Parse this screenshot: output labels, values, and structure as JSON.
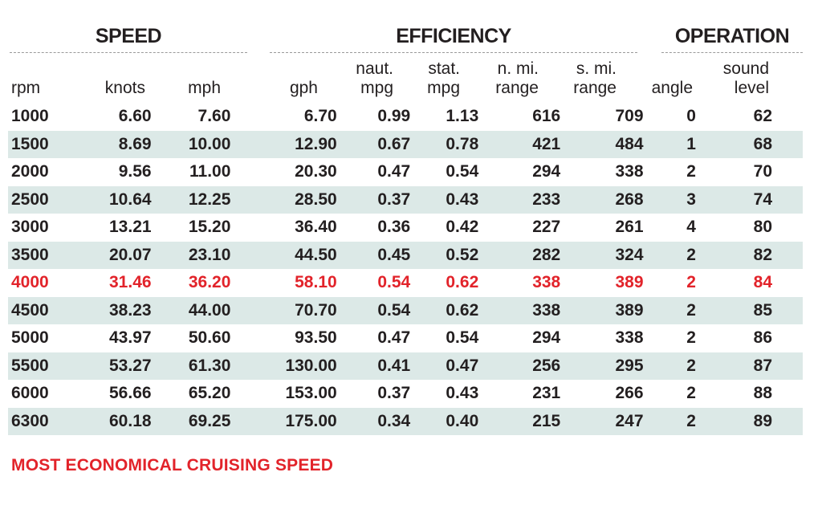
{
  "groups": {
    "speed": "SPEED",
    "efficiency": "EFFICIENCY",
    "operation": "OPERATION"
  },
  "columns": [
    {
      "key": "rpm",
      "lines": [
        "rpm"
      ]
    },
    {
      "key": "knots",
      "lines": [
        "knots"
      ]
    },
    {
      "key": "mph",
      "lines": [
        "mph"
      ]
    },
    {
      "key": "gph",
      "lines": [
        "gph"
      ]
    },
    {
      "key": "naut_mpg",
      "lines": [
        "naut.",
        "mpg"
      ]
    },
    {
      "key": "stat_mpg",
      "lines": [
        "stat.",
        "mpg"
      ]
    },
    {
      "key": "n_mi_range",
      "lines": [
        "n. mi.",
        "range"
      ]
    },
    {
      "key": "s_mi_range",
      "lines": [
        "s. mi.",
        "range"
      ]
    },
    {
      "key": "angle",
      "lines": [
        "angle"
      ]
    },
    {
      "key": "sound_level",
      "lines": [
        "sound",
        "level"
      ]
    }
  ],
  "rows": [
    [
      "1000",
      "6.60",
      "7.60",
      "6.70",
      "0.99",
      "1.13",
      "616",
      "709",
      "0",
      "62"
    ],
    [
      "1500",
      "8.69",
      "10.00",
      "12.90",
      "0.67",
      "0.78",
      "421",
      "484",
      "1",
      "68"
    ],
    [
      "2000",
      "9.56",
      "11.00",
      "20.30",
      "0.47",
      "0.54",
      "294",
      "338",
      "2",
      "70"
    ],
    [
      "2500",
      "10.64",
      "12.25",
      "28.50",
      "0.37",
      "0.43",
      "233",
      "268",
      "3",
      "74"
    ],
    [
      "3000",
      "13.21",
      "15.20",
      "36.40",
      "0.36",
      "0.42",
      "227",
      "261",
      "4",
      "80"
    ],
    [
      "3500",
      "20.07",
      "23.10",
      "44.50",
      "0.45",
      "0.52",
      "282",
      "324",
      "2",
      "82"
    ],
    [
      "4000",
      "31.46",
      "36.20",
      "58.10",
      "0.54",
      "0.62",
      "338",
      "389",
      "2",
      "84"
    ],
    [
      "4500",
      "38.23",
      "44.00",
      "70.70",
      "0.54",
      "0.62",
      "338",
      "389",
      "2",
      "85"
    ],
    [
      "5000",
      "43.97",
      "50.60",
      "93.50",
      "0.47",
      "0.54",
      "294",
      "338",
      "2",
      "86"
    ],
    [
      "5500",
      "53.27",
      "61.30",
      "130.00",
      "0.41",
      "0.47",
      "256",
      "295",
      "2",
      "87"
    ],
    [
      "6000",
      "56.66",
      "65.20",
      "153.00",
      "0.37",
      "0.43",
      "231",
      "266",
      "2",
      "88"
    ],
    [
      "6300",
      "60.18",
      "69.25",
      "175.00",
      "0.34",
      "0.40",
      "215",
      "247",
      "2",
      "89"
    ]
  ],
  "highlighted_row_rpm": "4000",
  "colors": {
    "highlight": "#e2232a",
    "alt_row": "#dce9e7",
    "text": "#231f20"
  },
  "footnote": "MOST ECONOMICAL CRUISING SPEED"
}
